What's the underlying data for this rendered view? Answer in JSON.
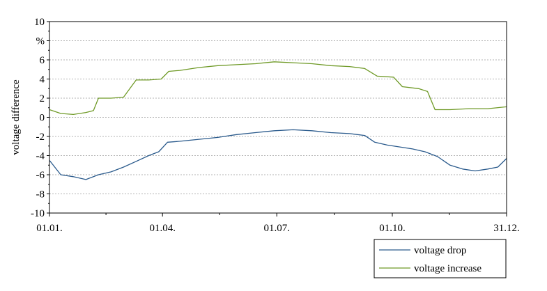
{
  "chart_data": {
    "type": "line",
    "ylabel": "voltage difference",
    "yunit": "%",
    "ylim": [
      -10,
      10
    ],
    "yticks": [
      "10",
      "",
      "6",
      "4",
      "2",
      "0",
      "-2",
      "-4",
      "-6",
      "-8",
      "-10"
    ],
    "xlim": [
      1,
      365
    ],
    "xticks": [
      {
        "day": 1,
        "label": "01.01."
      },
      {
        "day": 91,
        "label": "01.04."
      },
      {
        "day": 182,
        "label": "01.07."
      },
      {
        "day": 274,
        "label": "01.10."
      },
      {
        "day": 365,
        "label": "31.12."
      }
    ],
    "grid": true,
    "legend_position": "bottom-right",
    "series": [
      {
        "name": "voltage drop",
        "color": "#2a5a8c",
        "points": [
          {
            "day": 1,
            "value": -4.5
          },
          {
            "day": 10,
            "value": -6.0
          },
          {
            "day": 20,
            "value": -6.2
          },
          {
            "day": 30,
            "value": -6.5
          },
          {
            "day": 40,
            "value": -6.0
          },
          {
            "day": 50,
            "value": -5.7
          },
          {
            "day": 60,
            "value": -5.2
          },
          {
            "day": 70,
            "value": -4.6
          },
          {
            "day": 80,
            "value": -4.0
          },
          {
            "day": 88,
            "value": -3.6
          },
          {
            "day": 95,
            "value": -2.6
          },
          {
            "day": 105,
            "value": -2.5
          },
          {
            "day": 120,
            "value": -2.3
          },
          {
            "day": 135,
            "value": -2.1
          },
          {
            "day": 150,
            "value": -1.8
          },
          {
            "day": 165,
            "value": -1.6
          },
          {
            "day": 180,
            "value": -1.4
          },
          {
            "day": 195,
            "value": -1.3
          },
          {
            "day": 210,
            "value": -1.4
          },
          {
            "day": 225,
            "value": -1.6
          },
          {
            "day": 240,
            "value": -1.7
          },
          {
            "day": 252,
            "value": -1.9
          },
          {
            "day": 260,
            "value": -2.6
          },
          {
            "day": 270,
            "value": -2.9
          },
          {
            "day": 280,
            "value": -3.1
          },
          {
            "day": 290,
            "value": -3.3
          },
          {
            "day": 300,
            "value": -3.6
          },
          {
            "day": 310,
            "value": -4.1
          },
          {
            "day": 320,
            "value": -5.0
          },
          {
            "day": 330,
            "value": -5.4
          },
          {
            "day": 340,
            "value": -5.6
          },
          {
            "day": 350,
            "value": -5.4
          },
          {
            "day": 358,
            "value": -5.2
          },
          {
            "day": 365,
            "value": -4.3
          }
        ]
      },
      {
        "name": "voltage increase",
        "color": "#6f9a27",
        "points": [
          {
            "day": 1,
            "value": 0.8
          },
          {
            "day": 10,
            "value": 0.4
          },
          {
            "day": 20,
            "value": 0.3
          },
          {
            "day": 30,
            "value": 0.5
          },
          {
            "day": 36,
            "value": 0.7
          },
          {
            "day": 40,
            "value": 2.0
          },
          {
            "day": 50,
            "value": 2.0
          },
          {
            "day": 60,
            "value": 2.1
          },
          {
            "day": 65,
            "value": 3.0
          },
          {
            "day": 70,
            "value": 3.9
          },
          {
            "day": 80,
            "value": 3.9
          },
          {
            "day": 90,
            "value": 4.0
          },
          {
            "day": 96,
            "value": 4.8
          },
          {
            "day": 105,
            "value": 4.9
          },
          {
            "day": 120,
            "value": 5.2
          },
          {
            "day": 135,
            "value": 5.4
          },
          {
            "day": 150,
            "value": 5.5
          },
          {
            "day": 165,
            "value": 5.6
          },
          {
            "day": 180,
            "value": 5.8
          },
          {
            "day": 195,
            "value": 5.7
          },
          {
            "day": 210,
            "value": 5.6
          },
          {
            "day": 225,
            "value": 5.4
          },
          {
            "day": 240,
            "value": 5.3
          },
          {
            "day": 252,
            "value": 5.1
          },
          {
            "day": 262,
            "value": 4.3
          },
          {
            "day": 275,
            "value": 4.2
          },
          {
            "day": 282,
            "value": 3.2
          },
          {
            "day": 295,
            "value": 3.0
          },
          {
            "day": 302,
            "value": 2.7
          },
          {
            "day": 308,
            "value": 0.8
          },
          {
            "day": 320,
            "value": 0.8
          },
          {
            "day": 335,
            "value": 0.9
          },
          {
            "day": 350,
            "value": 0.9
          },
          {
            "day": 365,
            "value": 1.1
          }
        ]
      }
    ]
  }
}
